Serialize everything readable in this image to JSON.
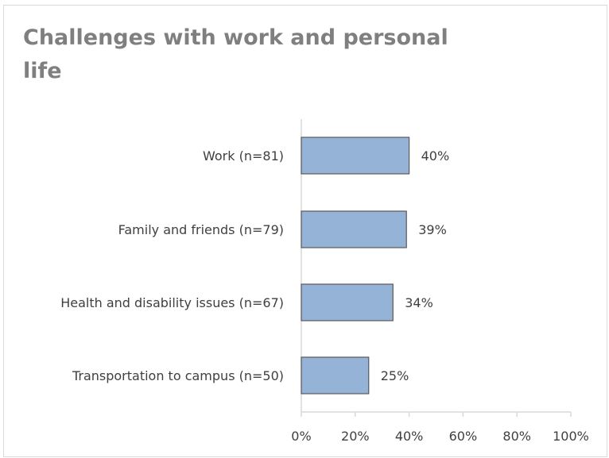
{
  "chart_data": {
    "type": "bar",
    "orientation": "horizontal",
    "title": "Challenges with work and personal life",
    "xlabel": "",
    "ylabel": "",
    "categories": [
      "Work (n=81)",
      "Family and friends (n=79)",
      "Health and disability issues (n=67)",
      "Transportation to campus (n=50)"
    ],
    "values": [
      40,
      39,
      34,
      25
    ],
    "data_labels": [
      "40%",
      "39%",
      "34%",
      "25%"
    ],
    "xlim": [
      0,
      100
    ],
    "x_ticks": [
      "0%",
      "20%",
      "40%",
      "60%",
      "80%",
      "100%"
    ],
    "grid": false,
    "legend": "none",
    "colors": {
      "bar_fill": "#95b3d7",
      "bar_stroke": "#595959",
      "axis": "#d9d9d9",
      "text": "#404040",
      "title": "#7f7f7f"
    }
  }
}
